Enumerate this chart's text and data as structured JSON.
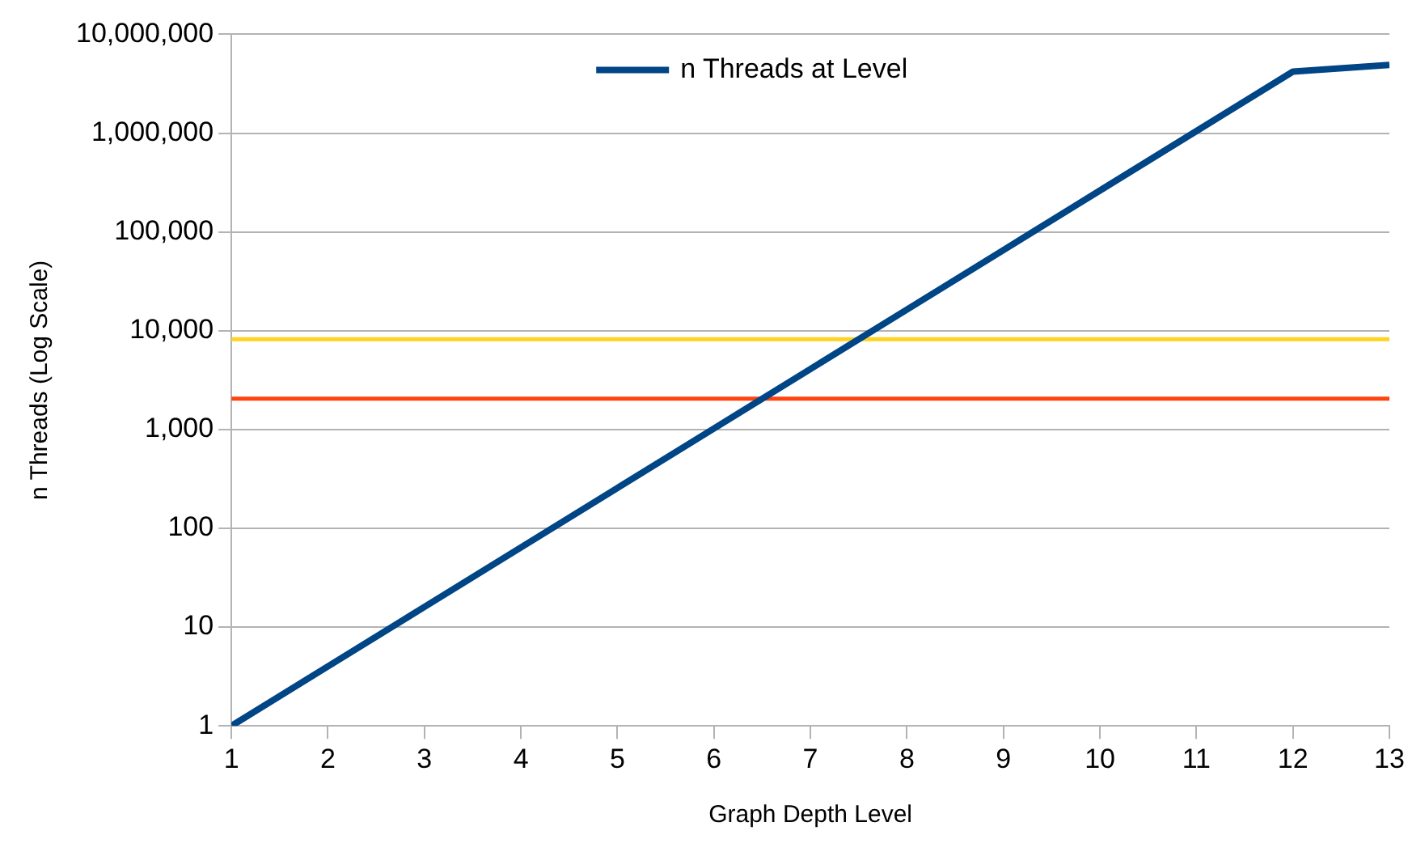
{
  "chart_data": {
    "type": "line",
    "xlabel": "Graph Depth Level",
    "ylabel": "n Threads (Log Scale)",
    "x": [
      1,
      2,
      3,
      4,
      5,
      6,
      7,
      8,
      9,
      10,
      11,
      12,
      13
    ],
    "series": [
      {
        "name": "n Threads at Level",
        "color": "#004586",
        "values": [
          1,
          4,
          16,
          64,
          256,
          1024,
          4096,
          16384,
          65536,
          262144,
          1048576,
          4194304,
          4900000
        ]
      },
      {
        "color": "#ff420e",
        "values": [
          2048,
          2048,
          2048,
          2048,
          2048,
          2048,
          2048,
          2048,
          2048,
          2048,
          2048,
          2048,
          2048
        ]
      },
      {
        "color": "#ffd320",
        "values": [
          8192,
          8192,
          8192,
          8192,
          8192,
          8192,
          8192,
          8192,
          8192,
          8192,
          8192,
          8192,
          8192
        ]
      }
    ],
    "xlim": [
      1,
      13
    ],
    "xticks": [
      1,
      2,
      3,
      4,
      5,
      6,
      7,
      8,
      9,
      10,
      11,
      12,
      13
    ],
    "ylim": [
      1,
      10000000
    ],
    "yticks": [
      1,
      10,
      100,
      {
        "value": 1000,
        "label": "1,000"
      },
      {
        "value": 10000,
        "label": "10,000"
      },
      {
        "value": 100000,
        "label": "100,000"
      },
      {
        "value": 1000000,
        "label": "1,000,000"
      },
      {
        "value": 10000000,
        "label": "10,000,000"
      }
    ],
    "log": "y",
    "grid": "y",
    "legend": "top",
    "marker": "none",
    "line_style": "solid"
  }
}
